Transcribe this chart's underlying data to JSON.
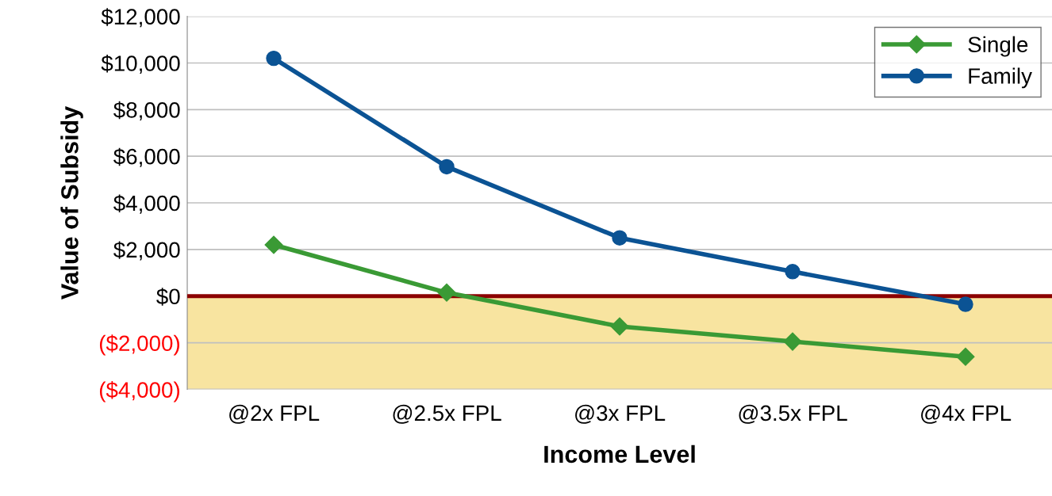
{
  "chart_data": {
    "type": "line",
    "xlabel": "Income Level",
    "ylabel": "Value of Subsidy",
    "categories": [
      "@2x FPL",
      "@2.5x FPL",
      "@3x FPL",
      "@3.5x FPL",
      "@4x FPL"
    ],
    "series": [
      {
        "name": "Single",
        "color": "#3a9a35",
        "marker": "diamond",
        "values": [
          2200,
          150,
          -1300,
          -1950,
          -2600
        ]
      },
      {
        "name": "Family",
        "color": "#0b5394",
        "marker": "circle",
        "values": [
          10200,
          5550,
          2500,
          1050,
          -350
        ]
      }
    ],
    "ylim": [
      -4000,
      12000
    ],
    "yticks": [
      {
        "value": -4000,
        "label": "($4,000)"
      },
      {
        "value": -2000,
        "label": "($2,000)"
      },
      {
        "value": 0,
        "label": "$0"
      },
      {
        "value": 2000,
        "label": "$2,000"
      },
      {
        "value": 4000,
        "label": "$4,000"
      },
      {
        "value": 6000,
        "label": "$6,000"
      },
      {
        "value": 8000,
        "label": "$8,000"
      },
      {
        "value": 10000,
        "label": "$10,000"
      },
      {
        "value": 12000,
        "label": "$12,000"
      }
    ],
    "ref_lines": [
      {
        "axis": "y",
        "value": 0,
        "color": "#8b0000"
      }
    ],
    "bands": [
      {
        "axis": "y",
        "from": -4000,
        "to": 0,
        "color": "#f8e4a0"
      }
    ],
    "grid": "y",
    "legend": "top right",
    "line_style": "solid"
  }
}
